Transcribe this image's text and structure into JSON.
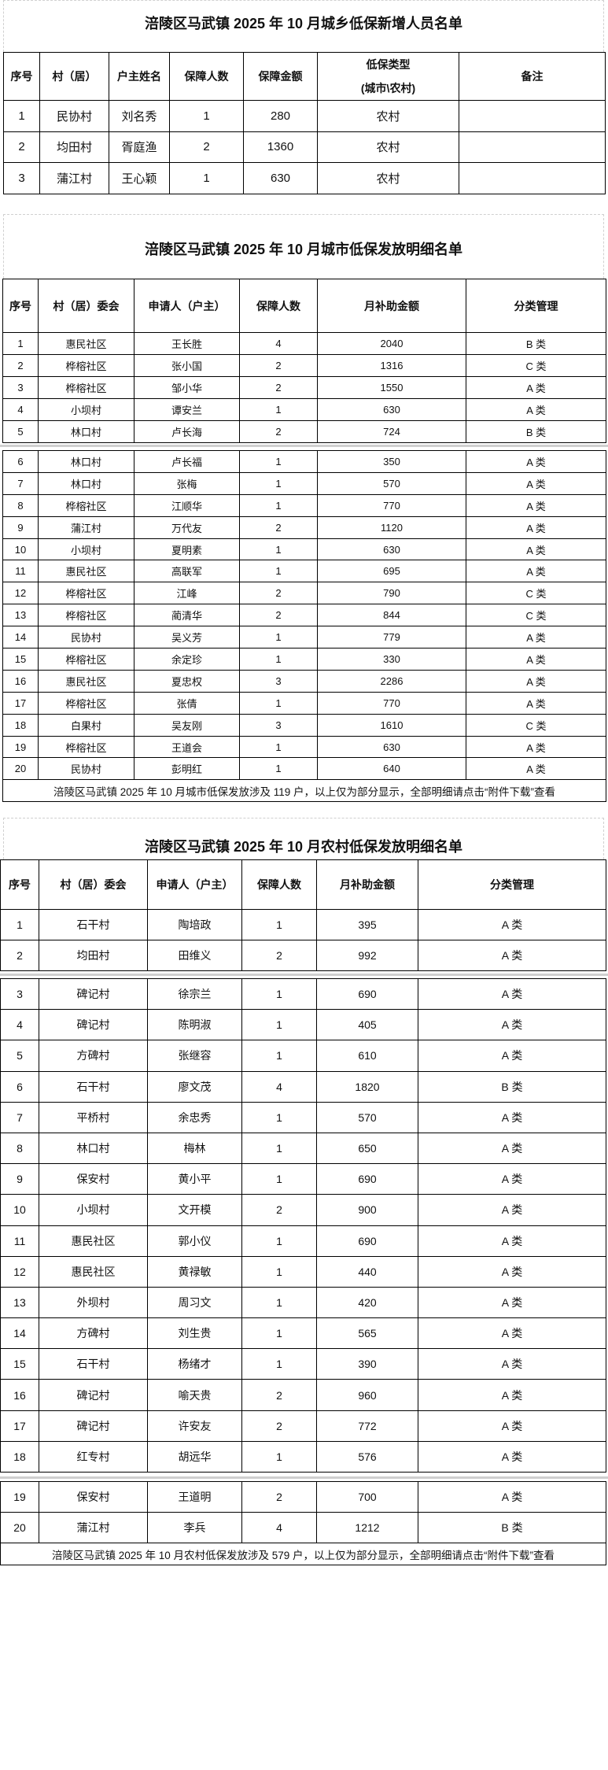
{
  "new_members": {
    "title": "涪陵区马武镇 2025 年 10 月城乡低保新增人员名单",
    "headers": [
      "序号",
      "村（居）",
      "户主姓名",
      "保障人数",
      "保障金额",
      "低保类型\n(城市\\农村)",
      "备注"
    ],
    "rows": [
      [
        "1",
        "民协村",
        "刘名秀",
        "1",
        "280",
        "农村",
        ""
      ],
      [
        "2",
        "均田村",
        "胥庭渔",
        "2",
        "1360",
        "农村",
        ""
      ],
      [
        "3",
        "蒲江村",
        "王心颖",
        "1",
        "630",
        "农村",
        ""
      ]
    ]
  },
  "urban": {
    "title": "涪陵区马武镇 2025 年 10 月城市低保发放明细名单",
    "headers": [
      "序号",
      "村（居）委会",
      "申请人（户主）",
      "保障人数",
      "月补助金额",
      "分类管理"
    ],
    "rows": [
      [
        "1",
        "惠民社区",
        "王长胜",
        "4",
        "2040",
        "B 类"
      ],
      [
        "2",
        "桦榕社区",
        "张小国",
        "2",
        "1316",
        "C 类"
      ],
      [
        "3",
        "桦榕社区",
        "邹小华",
        "2",
        "1550",
        "A 类"
      ],
      [
        "4",
        "小坝村",
        "谭安兰",
        "1",
        "630",
        "A 类"
      ],
      [
        "5",
        "林口村",
        "卢长海",
        "2",
        "724",
        "B 类"
      ],
      [
        "6",
        "林口村",
        "卢长福",
        "1",
        "350",
        "A 类"
      ],
      [
        "7",
        "林口村",
        "张梅",
        "1",
        "570",
        "A 类"
      ],
      [
        "8",
        "桦榕社区",
        "江顺华",
        "1",
        "770",
        "A 类"
      ],
      [
        "9",
        "蒲江村",
        "万代友",
        "2",
        "1120",
        "A 类"
      ],
      [
        "10",
        "小坝村",
        "夏明素",
        "1",
        "630",
        "A 类"
      ],
      [
        "11",
        "惠民社区",
        "高联军",
        "1",
        "695",
        "A 类"
      ],
      [
        "12",
        "桦榕社区",
        "江峰",
        "2",
        "790",
        "C 类"
      ],
      [
        "13",
        "桦榕社区",
        "蔺清华",
        "2",
        "844",
        "C 类"
      ],
      [
        "14",
        "民协村",
        "吴义芳",
        "1",
        "779",
        "A 类"
      ],
      [
        "15",
        "桦榕社区",
        "余定珍",
        "1",
        "330",
        "A 类"
      ],
      [
        "16",
        "惠民社区",
        "夏忠权",
        "3",
        "2286",
        "A 类"
      ],
      [
        "17",
        "桦榕社区",
        "张倩",
        "1",
        "770",
        "A 类"
      ],
      [
        "18",
        "白果村",
        "吴友刚",
        "3",
        "1610",
        "C 类"
      ],
      [
        "19",
        "桦榕社区",
        "王道会",
        "1",
        "630",
        "A 类"
      ],
      [
        "20",
        "民协村",
        "彭明红",
        "1",
        "640",
        "A 类"
      ]
    ],
    "footer": "涪陵区马武镇 2025 年 10 月城市低保发放涉及 119 户，以上仅为部分显示，全部明细请点击“附件下载”查看"
  },
  "rural": {
    "title": "涪陵区马武镇 2025 年 10 月农村低保发放明细名单",
    "headers": [
      "序号",
      "村（居）委会",
      "申请人（户主）",
      "保障人数",
      "月补助金额",
      "分类管理"
    ],
    "rows": [
      [
        "1",
        "石干村",
        "陶培政",
        "1",
        "395",
        "A 类"
      ],
      [
        "2",
        "均田村",
        "田维义",
        "2",
        "992",
        "A 类"
      ],
      [
        "3",
        "碑记村",
        "徐宗兰",
        "1",
        "690",
        "A 类"
      ],
      [
        "4",
        "碑记村",
        "陈明淑",
        "1",
        "405",
        "A 类"
      ],
      [
        "5",
        "方碑村",
        "张继容",
        "1",
        "610",
        "A 类"
      ],
      [
        "6",
        "石干村",
        "廖文茂",
        "4",
        "1820",
        "B 类"
      ],
      [
        "7",
        "平桥村",
        "余忠秀",
        "1",
        "570",
        "A 类"
      ],
      [
        "8",
        "林口村",
        "梅林",
        "1",
        "650",
        "A 类"
      ],
      [
        "9",
        "保安村",
        "黄小平",
        "1",
        "690",
        "A 类"
      ],
      [
        "10",
        "小坝村",
        "文开模",
        "2",
        "900",
        "A 类"
      ],
      [
        "11",
        "惠民社区",
        "郭小仪",
        "1",
        "690",
        "A 类"
      ],
      [
        "12",
        "惠民社区",
        "黄禄敏",
        "1",
        "440",
        "A 类"
      ],
      [
        "13",
        "外坝村",
        "周习文",
        "1",
        "420",
        "A 类"
      ],
      [
        "14",
        "方碑村",
        "刘生贵",
        "1",
        "565",
        "A 类"
      ],
      [
        "15",
        "石干村",
        "杨绪才",
        "1",
        "390",
        "A 类"
      ],
      [
        "16",
        "碑记村",
        "喻天贵",
        "2",
        "960",
        "A 类"
      ],
      [
        "17",
        "碑记村",
        "许安友",
        "2",
        "772",
        "A 类"
      ],
      [
        "18",
        "红专村",
        "胡远华",
        "1",
        "576",
        "A 类"
      ],
      [
        "19",
        "保安村",
        "王道明",
        "2",
        "700",
        "A 类"
      ],
      [
        "20",
        "蒲江村",
        "李兵",
        "4",
        "1212",
        "B 类"
      ]
    ],
    "footer": "涪陵区马武镇 2025 年 10 月农村低保发放涉及 579 户，以上仅为部分显示，全部明细请点击“附件下载”查看"
  }
}
